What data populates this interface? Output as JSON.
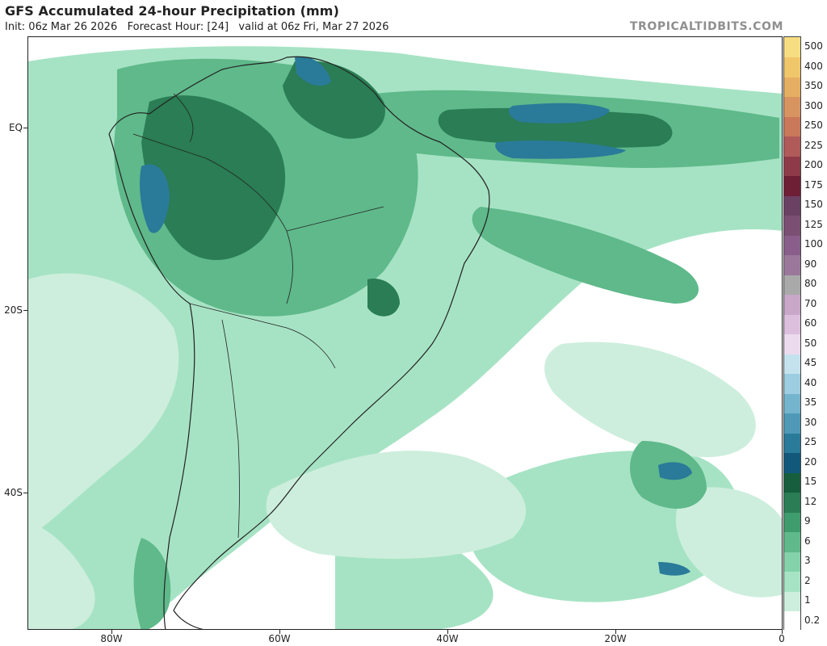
{
  "header": {
    "title": "GFS Accumulated 24-hour Precipitation (mm)",
    "subtitle": "Init: 06z Mar 26 2026   Forecast Hour: [24]   valid at 06z Fri, Mar 27 2026",
    "brand": "TROPICALTIDBITS.COM"
  },
  "axes": {
    "lat_labels": [
      "EQ",
      "20S",
      "40S"
    ],
    "lon_labels": [
      "80W",
      "60W",
      "40W",
      "20W",
      "0"
    ]
  },
  "colorbar": {
    "levels": [
      "0.2",
      "1",
      "2",
      "3",
      "6",
      "9",
      "12",
      "15",
      "20",
      "25",
      "30",
      "35",
      "40",
      "45",
      "50",
      "60",
      "70",
      "80",
      "90",
      "100",
      "125",
      "150",
      "175",
      "200",
      "225",
      "250",
      "300",
      "350",
      "400",
      "500"
    ],
    "colors": [
      "#ffffff",
      "#cdeedd",
      "#a6e3c4",
      "#84d2aa",
      "#5fb98a",
      "#3f9c6c",
      "#2a7d54",
      "#165e3d",
      "#11587b",
      "#2a7a99",
      "#4f99b7",
      "#74b4cd",
      "#9ccde0",
      "#c4e2ee",
      "#ecdaee",
      "#dcbfdc",
      "#c8a7c8",
      "#a9a9a9",
      "#9b789b",
      "#8a5e8a",
      "#7a4f73",
      "#6b4163",
      "#6e1f35",
      "#8e3a48",
      "#b05a5a",
      "#c9785a",
      "#d89460",
      "#e6ae62",
      "#f0c66b",
      "#f7dd82"
    ]
  },
  "map": {
    "ocean_color": "#ffffff",
    "land_fill": "#ffffff",
    "border_color": "#222222"
  }
}
